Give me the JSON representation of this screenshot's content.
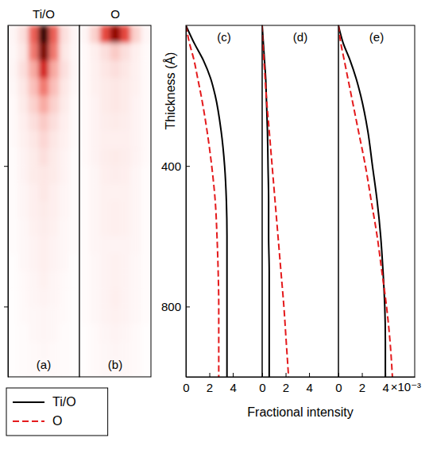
{
  "chart_data": [
    {
      "type": "heatmap",
      "title": "Ti/O",
      "label": "(a)",
      "ylim": [
        0,
        1000
      ],
      "yticks": [
        400,
        800
      ],
      "tick_labels": false,
      "zlim": [
        0,
        1
      ],
      "cells": [
        [
          0.05,
          0.15,
          0.45,
          1.0,
          0.45,
          0.15,
          0.05
        ],
        [
          0.04,
          0.12,
          0.4,
          0.85,
          0.4,
          0.12,
          0.04
        ],
        [
          0.05,
          0.15,
          0.3,
          0.6,
          0.3,
          0.15,
          0.05
        ],
        [
          0.04,
          0.12,
          0.25,
          0.4,
          0.25,
          0.12,
          0.04
        ],
        [
          0.03,
          0.1,
          0.2,
          0.3,
          0.2,
          0.1,
          0.03
        ],
        [
          0.03,
          0.08,
          0.15,
          0.22,
          0.15,
          0.08,
          0.03
        ],
        [
          0.03,
          0.07,
          0.12,
          0.18,
          0.12,
          0.07,
          0.03
        ],
        [
          0.02,
          0.06,
          0.1,
          0.15,
          0.1,
          0.06,
          0.02
        ],
        [
          0.02,
          0.06,
          0.1,
          0.12,
          0.1,
          0.06,
          0.02
        ],
        [
          0.02,
          0.05,
          0.08,
          0.12,
          0.08,
          0.05,
          0.02
        ],
        [
          0.02,
          0.05,
          0.08,
          0.1,
          0.08,
          0.05,
          0.02
        ],
        [
          0.02,
          0.04,
          0.07,
          0.09,
          0.07,
          0.04,
          0.02
        ],
        [
          0.02,
          0.04,
          0.06,
          0.08,
          0.06,
          0.04,
          0.02
        ],
        [
          0.01,
          0.04,
          0.06,
          0.08,
          0.06,
          0.04,
          0.01
        ],
        [
          0.01,
          0.03,
          0.05,
          0.07,
          0.05,
          0.03,
          0.01
        ],
        [
          0.01,
          0.03,
          0.05,
          0.06,
          0.05,
          0.03,
          0.01
        ],
        [
          0.01,
          0.03,
          0.04,
          0.05,
          0.04,
          0.03,
          0.01
        ],
        [
          0.01,
          0.02,
          0.04,
          0.05,
          0.04,
          0.02,
          0.01
        ],
        [
          0.01,
          0.02,
          0.03,
          0.04,
          0.03,
          0.02,
          0.01
        ],
        [
          0.01,
          0.02,
          0.03,
          0.03,
          0.03,
          0.02,
          0.01
        ]
      ]
    },
    {
      "type": "heatmap",
      "title": "O",
      "label": "(b)",
      "ylim": [
        0,
        1000
      ],
      "tick_labels": false,
      "zlim": [
        0,
        1
      ],
      "cells": [
        [
          0.05,
          0.2,
          0.5,
          0.8,
          0.5,
          0.2,
          0.05
        ],
        [
          0.03,
          0.08,
          0.15,
          0.22,
          0.15,
          0.08,
          0.03
        ],
        [
          0.03,
          0.07,
          0.12,
          0.15,
          0.12,
          0.07,
          0.03
        ],
        [
          0.03,
          0.07,
          0.1,
          0.12,
          0.1,
          0.07,
          0.03
        ],
        [
          0.03,
          0.06,
          0.1,
          0.12,
          0.1,
          0.06,
          0.03
        ],
        [
          0.03,
          0.06,
          0.09,
          0.1,
          0.09,
          0.06,
          0.03
        ],
        [
          0.03,
          0.06,
          0.08,
          0.08,
          0.08,
          0.06,
          0.03
        ],
        [
          0.03,
          0.06,
          0.09,
          0.1,
          0.09,
          0.06,
          0.03
        ],
        [
          0.02,
          0.05,
          0.08,
          0.09,
          0.08,
          0.05,
          0.02
        ],
        [
          0.02,
          0.05,
          0.07,
          0.07,
          0.07,
          0.05,
          0.02
        ],
        [
          0.02,
          0.05,
          0.07,
          0.08,
          0.07,
          0.05,
          0.02
        ],
        [
          0.02,
          0.05,
          0.07,
          0.08,
          0.07,
          0.05,
          0.02
        ],
        [
          0.02,
          0.05,
          0.06,
          0.06,
          0.06,
          0.05,
          0.02
        ],
        [
          0.02,
          0.04,
          0.06,
          0.07,
          0.06,
          0.04,
          0.02
        ],
        [
          0.02,
          0.04,
          0.06,
          0.07,
          0.06,
          0.04,
          0.02
        ],
        [
          0.02,
          0.04,
          0.06,
          0.08,
          0.06,
          0.04,
          0.02
        ],
        [
          0.02,
          0.04,
          0.06,
          0.07,
          0.06,
          0.04,
          0.02
        ],
        [
          0.01,
          0.03,
          0.05,
          0.06,
          0.05,
          0.03,
          0.01
        ],
        [
          0.01,
          0.03,
          0.04,
          0.05,
          0.04,
          0.03,
          0.01
        ],
        [
          0.01,
          0.03,
          0.04,
          0.04,
          0.04,
          0.03,
          0.01
        ]
      ]
    },
    {
      "type": "line",
      "label": "(c)",
      "ylabel": "Thickness (Å)",
      "legend": "bottom-left",
      "y": [
        0,
        50,
        100,
        150,
        200,
        300,
        400,
        500,
        600,
        700,
        800,
        900,
        1000
      ],
      "xlim": [
        0,
        6.5
      ],
      "xticks": [
        0,
        2,
        4
      ],
      "ylim": [
        0,
        1000
      ],
      "yticks": [
        400,
        800
      ],
      "series": [
        {
          "name": "Ti/O",
          "color": "#000000",
          "line_style": "solid",
          "values": [
            0,
            0.7,
            1.5,
            2.1,
            2.5,
            3.0,
            3.3,
            3.45,
            3.5,
            3.5,
            3.5,
            3.5,
            3.5
          ]
        },
        {
          "name": "O",
          "color": "#e41a1c",
          "line_style": "dashed",
          "values": [
            0,
            0.3,
            0.7,
            1.0,
            1.3,
            1.8,
            2.2,
            2.5,
            2.65,
            2.75,
            2.8,
            2.8,
            2.8
          ]
        }
      ]
    },
    {
      "type": "line",
      "label": "(d)",
      "xlabel": "Fractional intensity",
      "tick_labels": "x",
      "y": [
        0,
        50,
        100,
        150,
        200,
        300,
        400,
        500,
        600,
        700,
        800,
        900,
        1000
      ],
      "xlim": [
        0,
        6.5
      ],
      "xticks": [
        0,
        2,
        4
      ],
      "ylim": [
        0,
        1000
      ],
      "series": [
        {
          "color": "#000000",
          "line_style": "solid",
          "values": [
            0,
            0.1,
            0.2,
            0.3,
            0.35,
            0.45,
            0.5,
            0.55,
            0.55,
            0.6,
            0.6,
            0.6,
            0.6
          ]
        },
        {
          "color": "#e41a1c",
          "line_style": "dashed",
          "values": [
            0,
            0.05,
            0.15,
            0.25,
            0.35,
            0.6,
            0.85,
            1.1,
            1.35,
            1.6,
            1.85,
            2.05,
            2.25
          ]
        }
      ]
    },
    {
      "type": "line",
      "label": "(e)",
      "tick_labels": "x",
      "annotations": [
        {
          "text": "×10⁻³"
        }
      ],
      "y": [
        0,
        50,
        100,
        150,
        200,
        300,
        400,
        500,
        600,
        700,
        800,
        900,
        1000
      ],
      "xlim": [
        0,
        6.5
      ],
      "xticks": [
        0,
        2,
        4
      ],
      "ylim": [
        0,
        1000
      ],
      "series": [
        {
          "color": "#000000",
          "line_style": "solid",
          "values": [
            0,
            0.4,
            1.0,
            1.5,
            1.9,
            2.5,
            2.9,
            3.3,
            3.6,
            3.8,
            3.95,
            4.0,
            4.0
          ]
        },
        {
          "color": "#e41a1c",
          "line_style": "dashed",
          "values": [
            0,
            0.2,
            0.5,
            0.8,
            1.1,
            1.7,
            2.3,
            2.8,
            3.3,
            3.7,
            4.1,
            4.4,
            4.6
          ]
        }
      ]
    }
  ]
}
